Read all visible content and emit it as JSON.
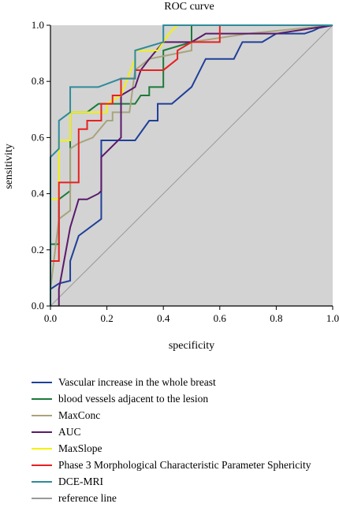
{
  "chart_data": {
    "type": "line",
    "title": "ROC curve",
    "xlabel": "specificity",
    "ylabel": "sensitivity",
    "xlim": [
      0,
      1
    ],
    "ylim": [
      0,
      1
    ],
    "xticks": [
      "0.0",
      "0.2",
      "0.4",
      "0.6",
      "0.8",
      "1.0"
    ],
    "yticks": [
      "0.0",
      "0.2",
      "0.4",
      "0.6",
      "0.8",
      "1.0"
    ],
    "background": "#d3d3d3",
    "grid": false,
    "legend_position": "bottom",
    "series": [
      {
        "name": "Vascular increase in the whole breast",
        "color": "#1f3f99",
        "x": [
          0,
          0,
          0.03,
          0.07,
          0.07,
          0.1,
          0.18,
          0.18,
          0.3,
          0.35,
          0.38,
          0.38,
          0.43,
          0.5,
          0.55,
          0.6,
          0.65,
          0.68,
          0.75,
          0.8,
          0.9,
          0.93,
          0.95,
          1.0
        ],
        "y": [
          0,
          0.06,
          0.08,
          0.09,
          0.16,
          0.25,
          0.31,
          0.59,
          0.59,
          0.66,
          0.66,
          0.72,
          0.72,
          0.78,
          0.88,
          0.88,
          0.88,
          0.94,
          0.94,
          0.97,
          0.97,
          0.98,
          0.99,
          1.0
        ]
      },
      {
        "name": "blood vessels adjacent to the lesion",
        "color": "#1b7a3a",
        "x": [
          0,
          0,
          0.03,
          0.03,
          0.07,
          0.07,
          0.13,
          0.17,
          0.25,
          0.3,
          0.32,
          0.35,
          0.35,
          0.4,
          0.4,
          0.5,
          0.5,
          0.6,
          1.0
        ],
        "y": [
          0,
          0.22,
          0.22,
          0.38,
          0.41,
          0.69,
          0.69,
          0.72,
          0.72,
          0.72,
          0.75,
          0.75,
          0.78,
          0.78,
          0.91,
          0.94,
          1.0,
          1.0,
          1.0
        ]
      },
      {
        "name": "MaxConc",
        "color": "#a8a47c",
        "x": [
          0,
          0,
          0.03,
          0.07,
          0.07,
          0.1,
          0.15,
          0.2,
          0.22,
          0.22,
          0.28,
          0.3,
          0.35,
          0.5,
          0.5,
          0.7,
          0.9,
          1.0
        ],
        "y": [
          0,
          0.06,
          0.31,
          0.34,
          0.56,
          0.58,
          0.6,
          0.66,
          0.66,
          0.69,
          0.69,
          0.84,
          0.88,
          0.91,
          0.94,
          0.97,
          0.99,
          1.0
        ]
      },
      {
        "name": "AUC",
        "color": "#5a1a6b",
        "x": [
          0.03,
          0.03,
          0.07,
          0.1,
          0.13,
          0.17,
          0.18,
          0.18,
          0.25,
          0.25,
          0.3,
          0.32,
          0.35,
          0.4,
          0.45,
          0.5,
          0.55,
          0.8,
          1.0
        ],
        "y": [
          0,
          0.06,
          0.28,
          0.38,
          0.38,
          0.4,
          0.41,
          0.53,
          0.6,
          0.75,
          0.78,
          0.84,
          0.88,
          0.94,
          0.94,
          0.94,
          0.97,
          0.97,
          1.0
        ]
      },
      {
        "name": "MaxSlope",
        "color": "#f2f20a",
        "x": [
          0,
          0.03,
          0.03,
          0.07,
          0.07,
          0.13,
          0.2,
          0.2,
          0.25,
          0.3,
          0.3,
          0.38,
          0.42,
          0.45,
          1.0
        ],
        "y": [
          0.38,
          0.38,
          0.59,
          0.59,
          0.69,
          0.69,
          0.69,
          0.72,
          0.75,
          0.88,
          0.91,
          0.91,
          0.97,
          1.0,
          1.0
        ]
      },
      {
        "name": "Phase 3 Morphological Characteristic Parameter Sphericity",
        "color": "#e82020",
        "x": [
          0,
          0,
          0.03,
          0.03,
          0.1,
          0.1,
          0.13,
          0.13,
          0.18,
          0.18,
          0.22,
          0.22,
          0.25,
          0.25,
          0.3,
          0.3,
          0.35,
          0.4,
          0.45,
          0.45,
          0.5,
          0.6,
          0.6,
          1.0
        ],
        "y": [
          0,
          0.16,
          0.16,
          0.44,
          0.44,
          0.63,
          0.63,
          0.66,
          0.66,
          0.72,
          0.72,
          0.75,
          0.75,
          0.81,
          0.81,
          0.84,
          0.84,
          0.84,
          0.88,
          0.91,
          0.94,
          0.94,
          1.0,
          1.0
        ]
      },
      {
        "name": "DCE-MRI",
        "color": "#2e8b9a",
        "x": [
          0,
          0,
          0.03,
          0.03,
          0.07,
          0.07,
          0.17,
          0.17,
          0.25,
          0.3,
          0.3,
          0.4,
          0.4,
          1.0
        ],
        "y": [
          0,
          0.53,
          0.56,
          0.66,
          0.69,
          0.78,
          0.78,
          0.78,
          0.81,
          0.81,
          0.91,
          0.94,
          1.0,
          1.0
        ]
      },
      {
        "name": "reference line",
        "color": "#999999",
        "x": [
          0,
          1
        ],
        "y": [
          0,
          1
        ]
      }
    ]
  }
}
